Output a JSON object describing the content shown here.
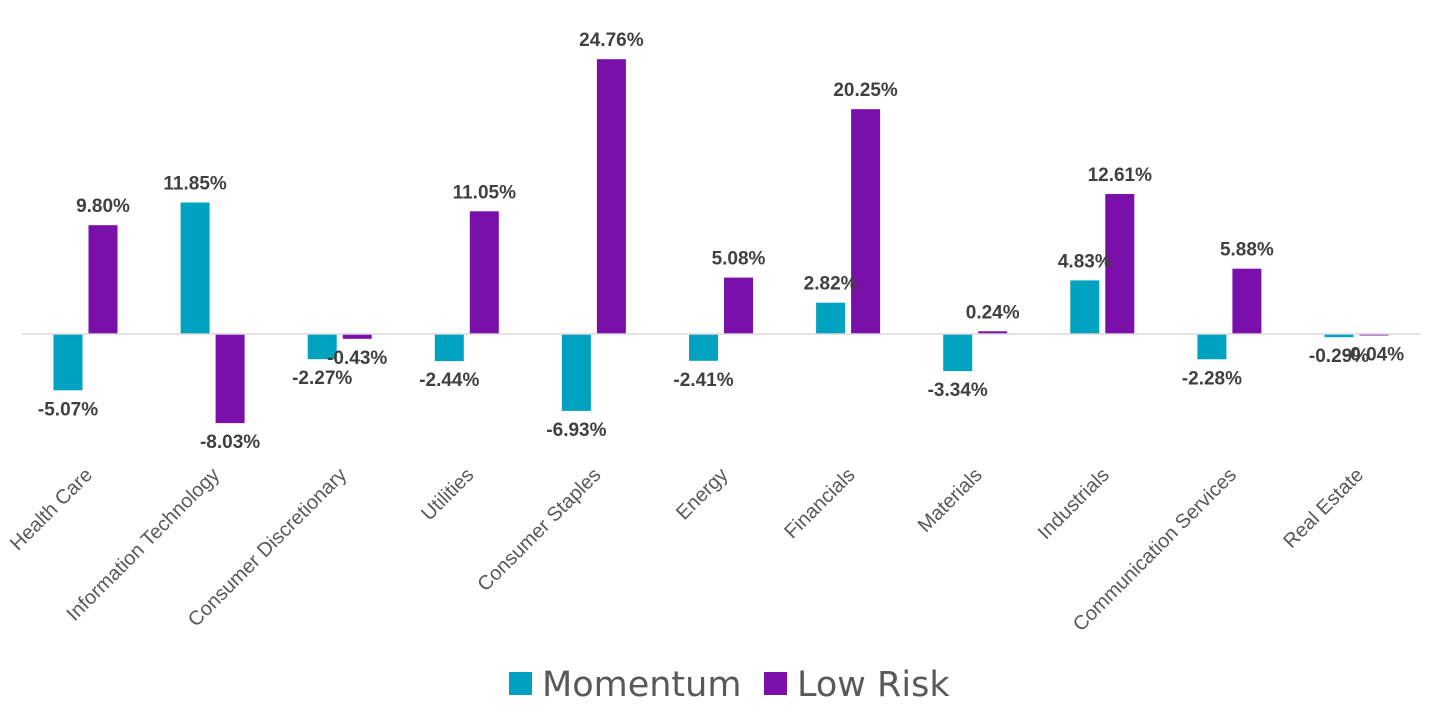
{
  "chart_data": {
    "type": "bar",
    "categories": [
      "Health Care",
      "Information Technology",
      "Consumer Discretionary",
      "Utilities",
      "Consumer Staples",
      "Energy",
      "Financials",
      "Materials",
      "Industrials",
      "Communication Services",
      "Real Estate"
    ],
    "series": [
      {
        "name": "Momentum",
        "color": "#00A3BF",
        "values": [
          -5.07,
          11.85,
          -2.27,
          -2.44,
          -6.93,
          -2.41,
          2.82,
          -3.34,
          4.83,
          -2.28,
          -0.29
        ],
        "labels": [
          "-5.07%",
          "11.85%",
          "-2.27%",
          "-2.44%",
          "-6.93%",
          "-2.41%",
          "2.82%",
          "-3.34%",
          "4.83%",
          "-2.28%",
          "-0.29%"
        ]
      },
      {
        "name": "Low Risk",
        "color": "#7B0FAA",
        "values": [
          9.8,
          -8.03,
          -0.43,
          11.05,
          24.76,
          5.08,
          20.25,
          0.24,
          12.61,
          5.88,
          -0.04
        ],
        "labels": [
          "9.80%",
          "-8.03%",
          "-0.43%",
          "11.05%",
          "24.76%",
          "5.08%",
          "20.25%",
          "0.24%",
          "12.61%",
          "5.88%",
          "-0.04%"
        ]
      }
    ],
    "title": "",
    "xlabel": "",
    "ylabel": "",
    "y_unit": "%",
    "grid": false,
    "legend_position": "bottom-center",
    "axis_color": "#D9D9D9"
  }
}
